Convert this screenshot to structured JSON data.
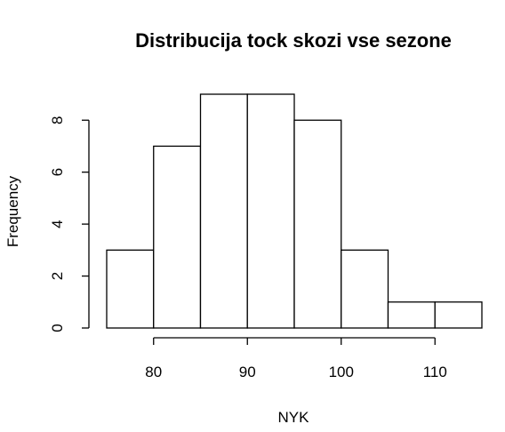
{
  "chart_data": {
    "type": "bar",
    "title": "Distribucija tock skozi vse sezone",
    "xlabel": "NYK",
    "ylabel": "Frequency",
    "bins": [
      {
        "start": 75,
        "end": 80,
        "count": 3
      },
      {
        "start": 80,
        "end": 85,
        "count": 7
      },
      {
        "start": 85,
        "end": 90,
        "count": 9
      },
      {
        "start": 90,
        "end": 95,
        "count": 9
      },
      {
        "start": 95,
        "end": 100,
        "count": 8
      },
      {
        "start": 100,
        "end": 105,
        "count": 3
      },
      {
        "start": 105,
        "end": 110,
        "count": 1
      },
      {
        "start": 110,
        "end": 115,
        "count": 1
      }
    ],
    "x_ticks": [
      80,
      90,
      100,
      110
    ],
    "y_ticks": [
      0,
      2,
      4,
      6,
      8
    ],
    "xlim": [
      75,
      115
    ],
    "ylim": [
      0,
      9
    ],
    "grid": false,
    "colors": {
      "bar_fill": "#ffffff",
      "bar_stroke": "#000000"
    }
  }
}
